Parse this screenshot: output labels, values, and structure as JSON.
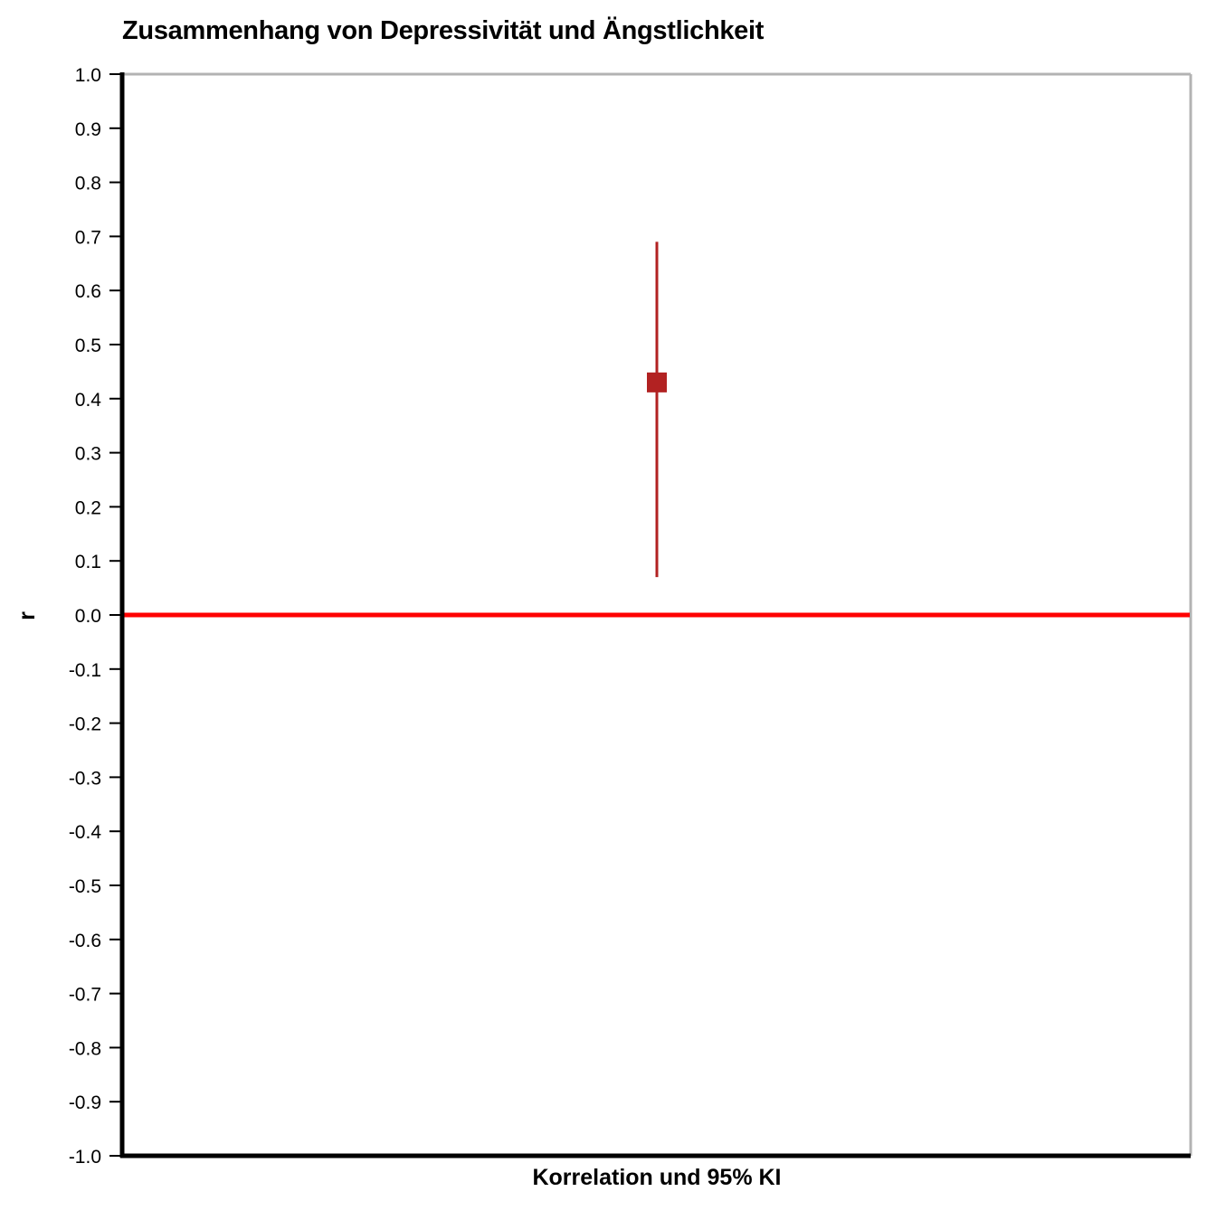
{
  "chart_data": {
    "type": "scatter",
    "title": "Zusammenhang von Depressivität und Ängstlichkeit",
    "xlabel": "Korrelation und 95% KI",
    "ylabel": "r",
    "ylim": [
      -1.0,
      1.0
    ],
    "yticks": [
      1.0,
      0.9,
      0.8,
      0.7,
      0.6,
      0.5,
      0.4,
      0.3,
      0.2,
      0.1,
      0.0,
      -0.1,
      -0.2,
      -0.3,
      -0.4,
      -0.5,
      -0.6,
      -0.7,
      -0.8,
      -0.9,
      -1.0
    ],
    "ytick_labels": [
      "1.0",
      "0.9",
      "0.8",
      "0.7",
      "0.6",
      "0.5",
      "0.4",
      "0.3",
      "0.2",
      "0.1",
      "0.0",
      "-0.1",
      "-0.2",
      "-0.3",
      "-0.4",
      "-0.5",
      "-0.6",
      "-0.7",
      "-0.8",
      "-0.9",
      "-1.0"
    ],
    "points": [
      {
        "x": 0,
        "y": 0.43,
        "ci_low": 0.07,
        "ci_high": 0.69
      }
    ],
    "reference_line": {
      "y": 0.0
    },
    "grid": false,
    "colors": {
      "marker": "#b22222",
      "reference_line": "#ff0000",
      "axis": "#000000",
      "frame": "#b3b3b3"
    }
  }
}
